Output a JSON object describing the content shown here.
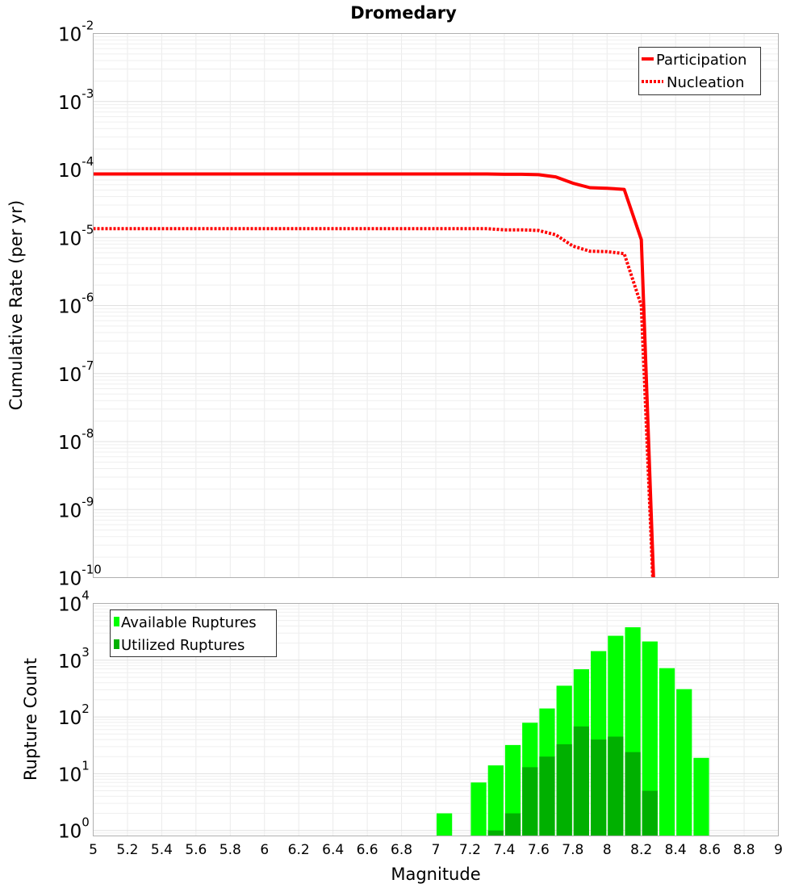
{
  "chart_data": [
    {
      "type": "line",
      "title": "Dromedary",
      "xlabel": "Magnitude",
      "ylabel": "Cumulative Rate (per yr)",
      "xlim": [
        5,
        9
      ],
      "ylim": [
        1e-10,
        0.01
      ],
      "yscale": "log",
      "grid": true,
      "legend_position": "top-right",
      "x": [
        5.0,
        5.1,
        5.2,
        5.3,
        5.4,
        5.5,
        5.6,
        5.7,
        5.8,
        5.9,
        6.0,
        6.1,
        6.2,
        6.3,
        6.4,
        6.5,
        6.6,
        6.7,
        6.8,
        6.9,
        7.0,
        7.1,
        7.2,
        7.3,
        7.4,
        7.5,
        7.6,
        7.7,
        7.8,
        7.9,
        8.0,
        8.1,
        8.2,
        8.3
      ],
      "series": [
        {
          "name": "Participation",
          "color": "#ff0000",
          "style": "solid",
          "values": [
            8.6e-05,
            8.6e-05,
            8.6e-05,
            8.6e-05,
            8.6e-05,
            8.6e-05,
            8.6e-05,
            8.6e-05,
            8.6e-05,
            8.6e-05,
            8.6e-05,
            8.6e-05,
            8.6e-05,
            8.6e-05,
            8.6e-05,
            8.6e-05,
            8.6e-05,
            8.6e-05,
            8.6e-05,
            8.6e-05,
            8.6e-05,
            8.6e-05,
            8.6e-05,
            8.6e-05,
            8.5e-05,
            8.5e-05,
            8.4e-05,
            7.8e-05,
            6.3e-05,
            5.4e-05,
            5.3e-05,
            5.1e-05,
            9.3e-06,
            1e-12
          ]
        },
        {
          "name": "Nucleation",
          "color": "#ff0000",
          "style": "dotted",
          "values": [
            1.35e-05,
            1.35e-05,
            1.35e-05,
            1.35e-05,
            1.35e-05,
            1.35e-05,
            1.35e-05,
            1.35e-05,
            1.35e-05,
            1.35e-05,
            1.35e-05,
            1.35e-05,
            1.35e-05,
            1.35e-05,
            1.35e-05,
            1.35e-05,
            1.35e-05,
            1.35e-05,
            1.35e-05,
            1.35e-05,
            1.35e-05,
            1.35e-05,
            1.35e-05,
            1.35e-05,
            1.3e-05,
            1.3e-05,
            1.27e-05,
            1.1e-05,
            7.5e-06,
            6.3e-06,
            6.2e-06,
            5.8e-06,
            1e-06,
            1e-12
          ]
        }
      ],
      "y_tick_exponents": [
        "-2",
        "-3",
        "-4",
        "-5",
        "-6",
        "-7",
        "-8",
        "-9",
        "-10"
      ]
    },
    {
      "type": "bar",
      "xlabel": "Magnitude",
      "ylabel": "Rupture Count",
      "xlim": [
        5,
        9
      ],
      "ylim": [
        0.8,
        10000
      ],
      "yscale": "log",
      "grid": true,
      "legend_position": "top-left",
      "bin_width": 0.1,
      "x": [
        7.05,
        7.25,
        7.35,
        7.45,
        7.55,
        7.65,
        7.75,
        7.85,
        7.95,
        8.05,
        8.15,
        8.25,
        8.35,
        8.45,
        8.55
      ],
      "series": [
        {
          "name": "Available Ruptures",
          "color": "#00ff00",
          "values": [
            2,
            7,
            14,
            32,
            79,
            141,
            355,
            692,
            1445,
            2692,
            3802,
            2138,
            724,
            309,
            19
          ]
        },
        {
          "name": "Utilized Ruptures",
          "color": "#00b000",
          "values": [
            0,
            0,
            1,
            2,
            13,
            20,
            33,
            68,
            40,
            45,
            24,
            5,
            0,
            0,
            0
          ]
        }
      ],
      "y_tick_exponents": [
        "0",
        "1",
        "2",
        "3",
        "4"
      ],
      "x_ticks": [
        "5",
        "5.2",
        "5.4",
        "5.6",
        "5.8",
        "6",
        "6.2",
        "6.4",
        "6.6",
        "6.8",
        "7",
        "7.2",
        "7.4",
        "7.6",
        "7.8",
        "8",
        "8.2",
        "8.4",
        "8.6",
        "8.8",
        "9"
      ]
    }
  ]
}
